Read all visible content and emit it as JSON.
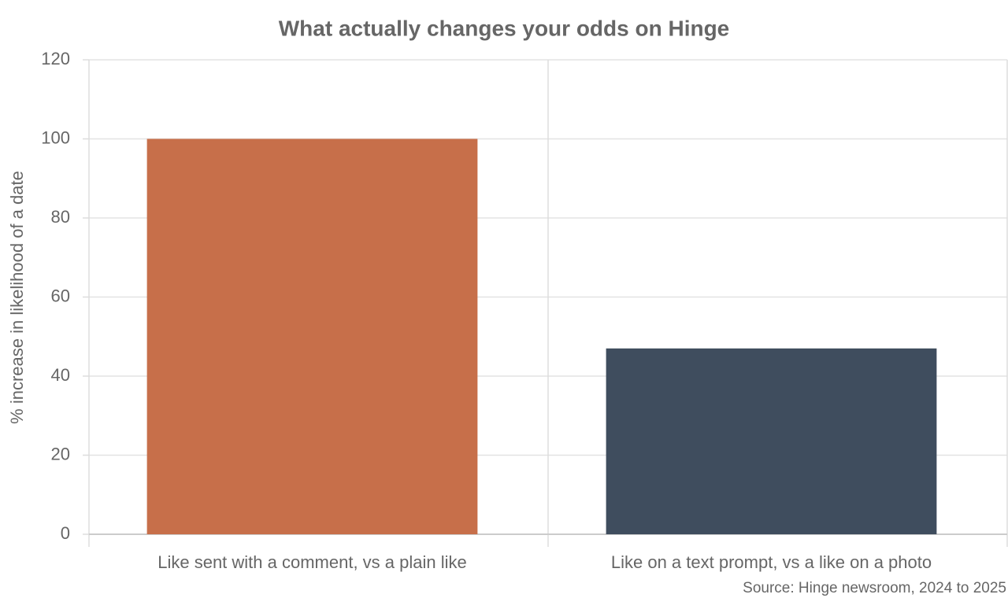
{
  "chart_data": {
    "type": "bar",
    "title": "What actually changes your odds on Hinge",
    "y_label": "% increase in likelihood of a date",
    "categories": [
      "Like sent with a comment, vs a plain like",
      "Like on a text prompt, vs a like on a photo"
    ],
    "values": [
      100,
      47
    ],
    "colors": [
      "#c76f4a",
      "#3f4d5e"
    ],
    "ylim": [
      0,
      120
    ],
    "yticks": [
      0,
      20,
      40,
      60,
      80,
      100,
      120
    ],
    "grid": true,
    "source": "Source: Hinge newsroom, 2024 to 2025"
  }
}
